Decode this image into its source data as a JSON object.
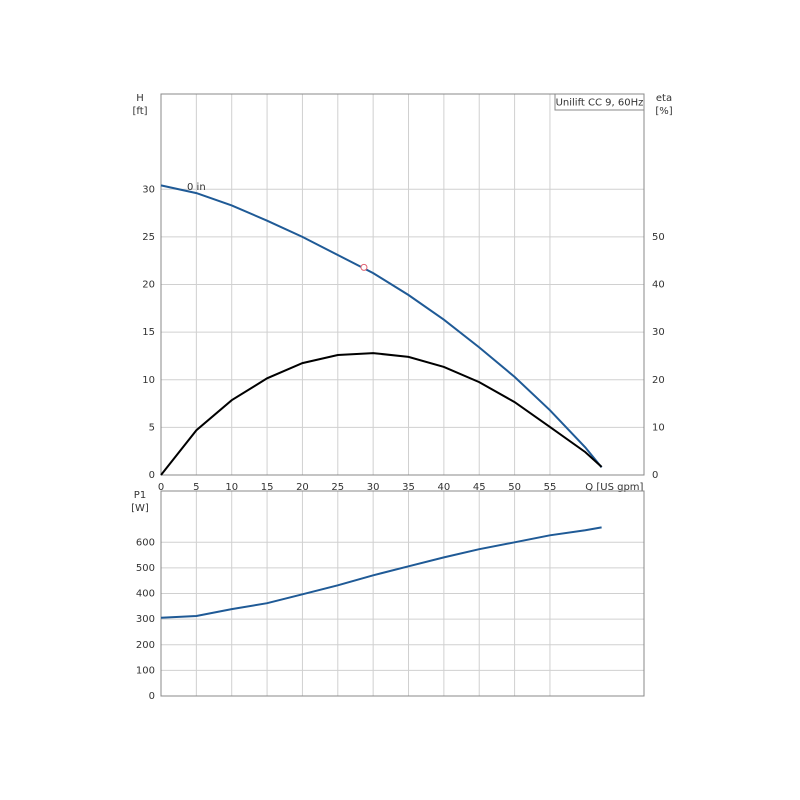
{
  "chart_data": [
    {
      "type": "line",
      "annotation": "Unilift CC 9, 60Hz",
      "curve_label": "0 in",
      "ylabel": "H",
      "yunit": "[ft]",
      "y2label": "eta",
      "y2unit": "[%]",
      "xlabel": "Q [US gpm]",
      "x": [
        0,
        5,
        10,
        15,
        20,
        25,
        30,
        35,
        40,
        45,
        50,
        55,
        60,
        62.3
      ],
      "xlim": [
        0,
        68.3
      ],
      "xticks": [
        0,
        5,
        10,
        15,
        20,
        25,
        30,
        35,
        40,
        45,
        50,
        55
      ],
      "ylim": [
        0,
        40
      ],
      "yticks": [
        0,
        5,
        10,
        15,
        20,
        25,
        30
      ],
      "y2lim": [
        0,
        80
      ],
      "y2ticks": [
        0,
        10,
        20,
        30,
        40,
        50
      ],
      "grid": true,
      "series": [
        {
          "color": "#1f5a96",
          "values": [
            30.4,
            29.6,
            28.3,
            26.7,
            25,
            23.1,
            21.2,
            18.9,
            16.3,
            13.4,
            10.3,
            6.8,
            2.9,
            0.8
          ]
        },
        {
          "color": "#000000",
          "axis": "y2",
          "values": [
            0,
            9.4,
            15.7,
            20.3,
            23.5,
            25.2,
            25.6,
            24.8,
            22.7,
            19.5,
            15.3,
            10.1,
            4.8,
            1.7
          ]
        }
      ],
      "duty_point": {
        "x": 28.7,
        "y": 21.8,
        "color": "#e06070"
      }
    },
    {
      "type": "line",
      "ylabel": "P1",
      "yunit": "[W]",
      "x": [
        0,
        5,
        10,
        15,
        20,
        25,
        30,
        35,
        40,
        45,
        50,
        55,
        60,
        62.3
      ],
      "xlim": [
        0,
        68.3
      ],
      "ylim": [
        0,
        800
      ],
      "yticks": [
        0,
        100,
        200,
        300,
        400,
        500,
        600
      ],
      "grid": true,
      "series": [
        {
          "color": "#1f5a96",
          "values": [
            305,
            312,
            339,
            362,
            397,
            432,
            471,
            506,
            541,
            573,
            600,
            627,
            647,
            658
          ]
        }
      ]
    }
  ]
}
